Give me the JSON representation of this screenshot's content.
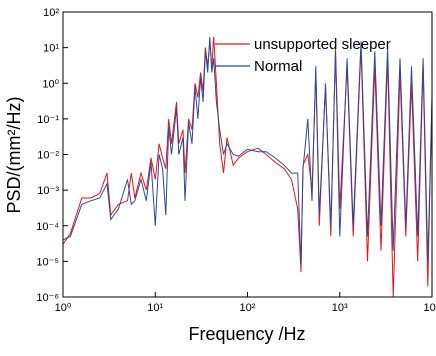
{
  "chart_data": {
    "type": "line",
    "xlabel": "Frequency /Hz",
    "ylabel": "PSD/(mm²/Hz)",
    "xscale": "log",
    "yscale": "log",
    "legend": "upper right",
    "xlim": [
      1,
      10000
    ],
    "ylim": [
      1e-06,
      100
    ],
    "xticks": [
      {
        "value": 1,
        "label": "10⁰"
      },
      {
        "value": 10,
        "label": "10¹"
      },
      {
        "value": 100,
        "label": "10²"
      },
      {
        "value": 1000,
        "label": "10³"
      },
      {
        "value": 10000,
        "label": "10⁴"
      }
    ],
    "yticks": [
      {
        "value": 1e-06,
        "label": "10⁻⁶"
      },
      {
        "value": 1e-05,
        "label": "10⁻⁵"
      },
      {
        "value": 0.0001,
        "label": "10⁻⁴"
      },
      {
        "value": 0.001,
        "label": "10⁻³"
      },
      {
        "value": 0.01,
        "label": "10⁻²"
      },
      {
        "value": 0.1,
        "label": "10⁻¹"
      },
      {
        "value": 1,
        "label": "10⁰"
      },
      {
        "value": 10,
        "label": "10¹"
      },
      {
        "value": 100,
        "label": "10²"
      }
    ],
    "x": [
      1,
      1.2,
      1.6,
      2,
      2.5,
      3,
      3.3,
      4,
      5,
      5.5,
      6,
      7,
      8,
      9,
      10,
      11,
      12,
      13,
      14,
      15,
      17,
      18,
      20,
      21,
      23,
      25,
      27,
      29,
      31,
      33,
      35,
      37,
      39,
      41,
      43,
      46,
      50,
      55,
      60,
      70,
      80,
      100,
      130,
      160,
      200,
      250,
      300,
      350,
      380,
      400,
      450,
      500,
      550,
      600,
      700,
      800,
      900,
      1000,
      1200,
      1400,
      1700,
      2000,
      2400,
      2800,
      3300,
      3800,
      4500,
      5200,
      6000,
      7000,
      8000,
      9000,
      10000
    ],
    "series": [
      {
        "name": "unsupported sleeper",
        "color": "#e8141c",
        "values": [
          3e-05,
          6e-05,
          0.0006,
          0.0006,
          0.0008,
          0.003,
          0.0002,
          0.0004,
          0.0005,
          0.003,
          0.0006,
          0.003,
          0.001,
          0.008,
          0.002,
          0.02,
          0.008,
          0.004,
          0.1,
          0.02,
          0.3,
          0.02,
          0.05,
          0.003,
          0.1,
          0.05,
          1,
          0.4,
          2,
          0.6,
          10,
          3,
          15,
          3,
          20,
          1,
          0.02,
          0.003,
          0.03,
          0.005,
          0.008,
          0.012,
          0.015,
          0.01,
          0.006,
          0.004,
          0.002,
          0.0003,
          5e-06,
          0.005,
          0.01,
          0.001,
          2,
          0.0001,
          1,
          5e-05,
          10,
          0.0003,
          3,
          5e-05,
          10,
          1e-05,
          3,
          2e-05,
          5,
          1e-06,
          2,
          5e-05,
          1,
          1e-05,
          3,
          2e-06,
          0.5
        ]
      },
      {
        "name": "Normal",
        "color": "#2b4a9a",
        "values": [
          4e-05,
          5e-05,
          0.0004,
          0.0005,
          0.0006,
          0.0015,
          0.00015,
          0.0003,
          0.002,
          0.0004,
          0.0005,
          0.002,
          0.0005,
          0.006,
          0.0001,
          0.01,
          0.004,
          0.0002,
          0.06,
          0.01,
          0.2,
          0.01,
          0.03,
          0.0005,
          0.08,
          0.02,
          0.8,
          0.1,
          1.5,
          0.3,
          8,
          2,
          20,
          2,
          5,
          0.3,
          0.05,
          0.01,
          0.02,
          0.01,
          0.009,
          0.014,
          0.012,
          0.012,
          0.008,
          0.005,
          0.003,
          0.003,
          8e-06,
          0.004,
          0.1,
          0.0005,
          3,
          0.0002,
          0.8,
          0.0001,
          8,
          5e-05,
          5,
          0.0001,
          15,
          5e-05,
          8,
          0.0001,
          10,
          2e-05,
          5,
          0.0001,
          3,
          5e-05,
          5,
          1e-05,
          0.3
        ]
      }
    ]
  }
}
